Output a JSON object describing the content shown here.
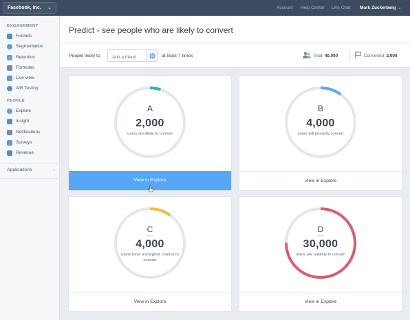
{
  "topbar": {
    "org": "Facebook, Inc.",
    "links": [
      "Account",
      "Help Center",
      "Live Chat"
    ],
    "user": "Mark Zuckerberg"
  },
  "sidebar": {
    "sections": [
      {
        "heading": "ENGAGEMENT",
        "items": [
          {
            "label": "Funnels",
            "icon": "funnel-icon"
          },
          {
            "label": "Segmentation",
            "icon": "pie-icon"
          },
          {
            "label": "Retention",
            "icon": "retention-icon"
          },
          {
            "label": "Formulas",
            "icon": "formula-icon"
          },
          {
            "label": "Live view",
            "icon": "live-view-icon"
          },
          {
            "label": "A/B Testing",
            "icon": "ab-test-icon"
          }
        ]
      },
      {
        "heading": "PEOPLE",
        "items": [
          {
            "label": "Explore",
            "icon": "explore-icon"
          },
          {
            "label": "Insight",
            "icon": "insight-icon"
          },
          {
            "label": "Notifications",
            "icon": "notifications-icon"
          },
          {
            "label": "Surveys",
            "icon": "survey-icon"
          },
          {
            "label": "Revenue",
            "icon": "revenue-icon"
          }
        ]
      }
    ],
    "applications": "Applications"
  },
  "header": {
    "title": "Predict - see people who are likely to convert"
  },
  "filter": {
    "prefix": "People likely to",
    "input_placeholder": "Add a friend",
    "suffix": "at least 7 times",
    "total_label": "Total:",
    "total_value": "40,000",
    "converted_label": "Converted:",
    "converted_value": "2,000"
  },
  "cards": [
    {
      "grade": "A",
      "count": "2,000",
      "desc": "users are likely to convert",
      "button": "View in Explore",
      "color": "#2bb8a8",
      "fraction": 0.05
    },
    {
      "grade": "B",
      "count": "4,000",
      "desc": "users will possibly convert",
      "button": "View in Explore",
      "color": "#5aa8ef",
      "fraction": 0.1
    },
    {
      "grade": "C",
      "count": "4,000",
      "desc": "users have a marginal chance to convert",
      "button": "View in Explore",
      "color": "#f2bd3a",
      "fraction": 0.1
    },
    {
      "grade": "D",
      "count": "30,000",
      "desc": "users are unlikely to convert",
      "button": "View in Explore",
      "color": "#dc5b6e",
      "fraction": 0.75
    }
  ],
  "colors": {
    "topbar": "#3d4b61",
    "accent": "#55a8f5",
    "ring_track": "#e3e7ed"
  }
}
